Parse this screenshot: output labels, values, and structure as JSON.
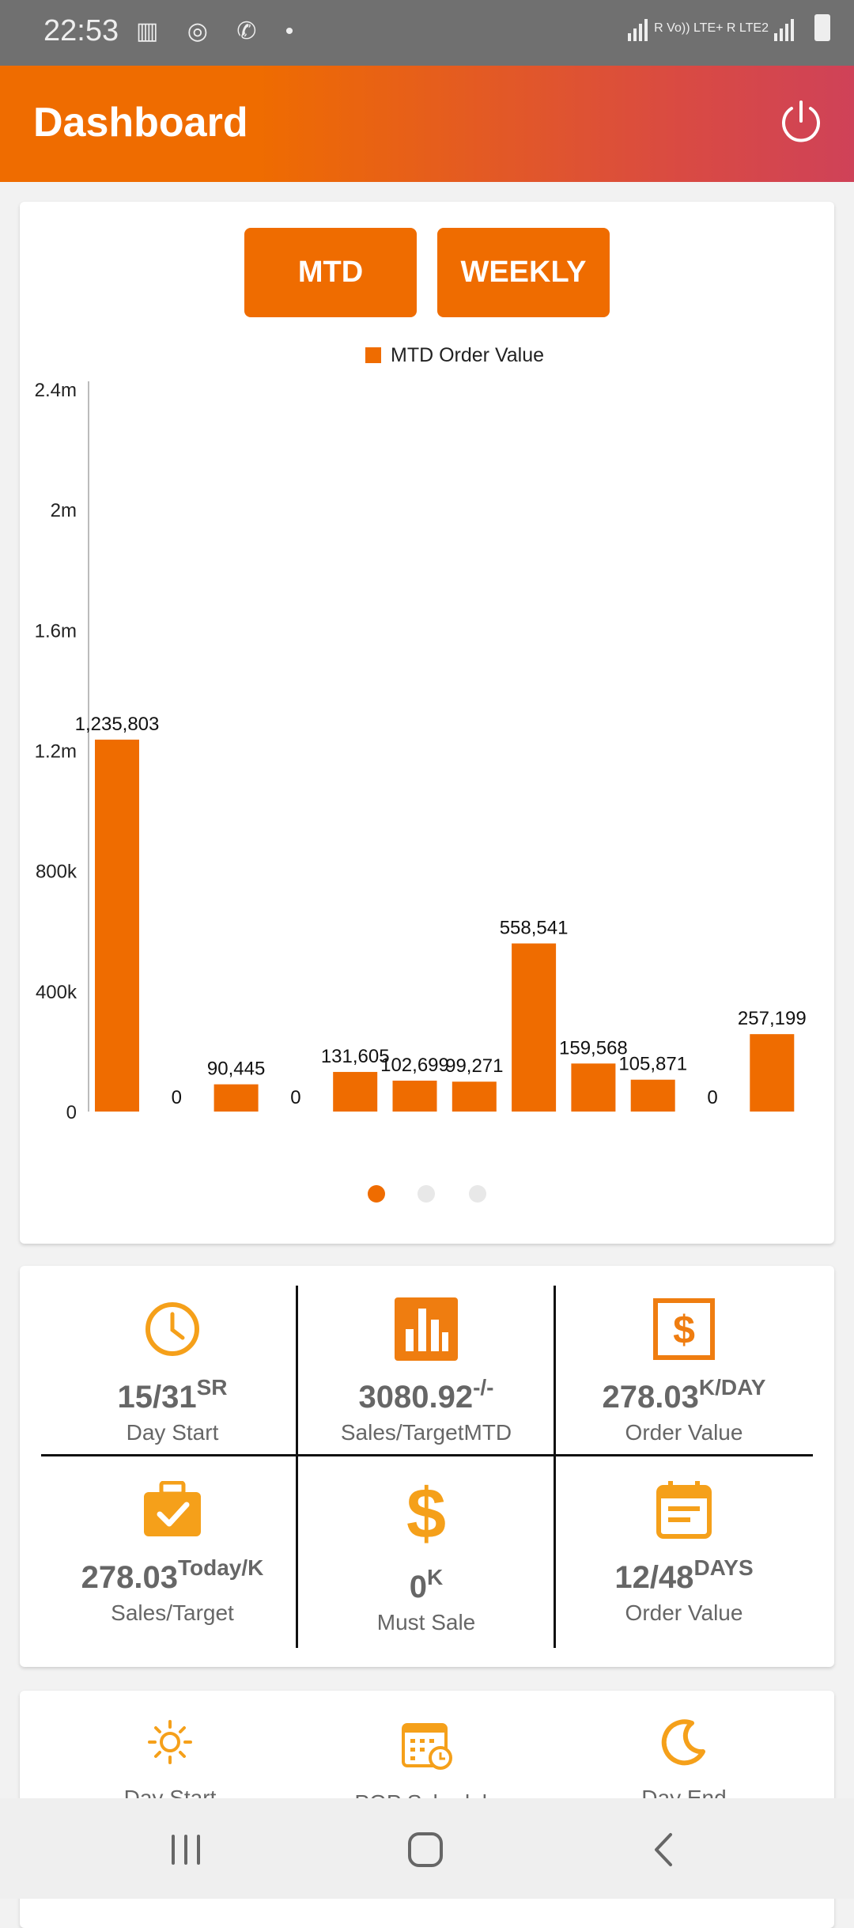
{
  "status_bar": {
    "time": "22:53",
    "left_icons": [
      "gallery-icon",
      "satellite-icon",
      "whatsapp-icon",
      "dot-icon"
    ],
    "right_text": "R Vo)) LTE+ R LTE2"
  },
  "app_bar": {
    "title": "Dashboard",
    "power_icon": "power-icon"
  },
  "chart_buttons": {
    "mtd": "MTD",
    "weekly": "WEEKLY"
  },
  "chart_data": {
    "type": "bar",
    "title": "",
    "xlabel": "",
    "ylabel": "",
    "legend": [
      "MTD Order Value"
    ],
    "legend_position": "top-center",
    "y_ticks": [
      "0",
      "400k",
      "800k",
      "1.2m",
      "1.6m",
      "2m",
      "2.4m"
    ],
    "ylim": [
      0,
      2400000
    ],
    "categories": [
      "",
      "",
      "",
      "",
      "",
      "",
      "",
      "",
      "",
      "",
      "",
      ""
    ],
    "series": [
      {
        "name": "MTD Order Value",
        "values": [
          1235803,
          0,
          90445,
          0,
          131605,
          102699,
          99271,
          558541,
          159568,
          105871,
          0,
          257199
        ],
        "labels": [
          "1,235,803",
          "0",
          "90,445",
          "0",
          "131,605",
          "102,699",
          "99,271",
          "558,541",
          "159,568",
          "105,871",
          "0",
          "257,199"
        ]
      }
    ],
    "bar_color": "#ef6c00",
    "grid": false
  },
  "pager": {
    "count": 3,
    "active": 0
  },
  "kpis": [
    {
      "icon": "clock-icon",
      "value": "15/31",
      "suffix": "SR",
      "label": "Day Start"
    },
    {
      "icon": "bar-chart-icon",
      "value": "3080.92",
      "suffix": "-/-",
      "label": "Sales/TargetMTD"
    },
    {
      "icon": "dollar-box-icon",
      "value": "278.03",
      "suffix": "K/DAY",
      "label": "Order Value"
    },
    {
      "icon": "briefcase-check-icon",
      "value": "278.03",
      "suffix": "Today/K",
      "label": "Sales/Target"
    },
    {
      "icon": "dollar-icon",
      "value": "0",
      "suffix": "K",
      "label": "Must Sale"
    },
    {
      "icon": "calendar-note-icon",
      "value": "12/48",
      "suffix": "DAYS",
      "label": "Order Value"
    }
  ],
  "quick_actions": [
    {
      "icon": "sun-icon",
      "label": "Day Start"
    },
    {
      "icon": "calendar-clock-icon",
      "label": "PGP Schedule"
    },
    {
      "icon": "moon-icon",
      "label": "Day End"
    }
  ],
  "nav": {
    "recent": "recent-apps-icon",
    "home": "home-icon",
    "back": "back-icon"
  },
  "colors": {
    "accent": "#ef6c00",
    "icon": "#f5a01a",
    "gradient_end": "#cf4258"
  }
}
